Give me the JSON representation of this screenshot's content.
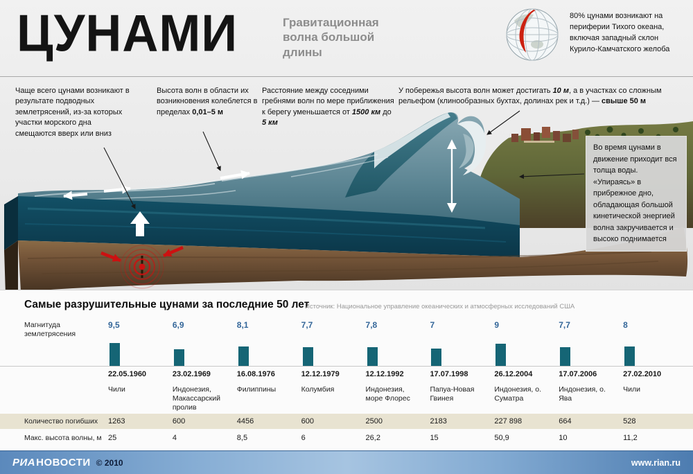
{
  "header": {
    "title": "ЦУНАМИ",
    "subtitle": "Гравитационная волна большой длины",
    "globe_note": "80% цунами возникают на периферии Тихого океана, включая западный склон Курило-Камчатского желоба"
  },
  "annotations": {
    "cause": "Чаще всего цунами возникают в результате подводных землетрясений, из-за которых участки морского дна смещаются вверх или вниз",
    "height_pre": "Высота волн в области их возникновения колеблется в пределах ",
    "height_bold": "0,01–5 м",
    "distance_pre": "Расстояние между соседними гребнями волн по мере приближения к берегу уменьшается от ",
    "distance_val1": "1500 км",
    "distance_mid": " до ",
    "distance_val2": "5 км",
    "coast_pre": "У побережья высота волн может достигать ",
    "coast_val1": "10 м",
    "coast_mid": ", а в участках со сложным рельефом (клинообразных бухтах, долинах рек и т.д.) — ",
    "coast_val2": "свыше 50 м",
    "column_note": "Во время цунами в движение приходит вся толща воды. «Упираясь» в прибрежное дно, обладающая большой кинетической энергией волна закручивается и высоко поднимается"
  },
  "chart": {
    "title": "Самые разрушительные цунами за последние 50 лет",
    "source": "Источник: Национальное управление океанических и атмосферных исследований США",
    "row_labels": {
      "magnitude": "Магнитуда землетрясения",
      "deaths": "Количество погибших",
      "wave_height": "Макс. высота волны, м"
    }
  },
  "chart_data": {
    "type": "bar",
    "title": "Самые разрушительные цунами за последние 50 лет",
    "categories": [
      "22.05.1960",
      "23.02.1969",
      "16.08.1976",
      "12.12.1979",
      "12.12.1992",
      "17.07.1998",
      "26.12.2004",
      "17.07.2006",
      "27.02.2010"
    ],
    "locations": [
      "Чили",
      "Индонезия, Макассарский пролив",
      "Филиппины",
      "Колумбия",
      "Индонезия, море Флорес",
      "Папуа-Новая Гвинея",
      "Индонезия, о. Суматра",
      "Индонезия, о. Ява",
      "Чили"
    ],
    "magnitude_display": [
      "9,5",
      "6,9",
      "8,1",
      "7,7",
      "7,8",
      "7",
      "9",
      "7,7",
      "8"
    ],
    "deaths_display": [
      "1263",
      "600",
      "4456",
      "600",
      "2500",
      "2183",
      "227 898",
      "664",
      "528"
    ],
    "height_display": [
      "25",
      "4",
      "8,5",
      "6",
      "26,2",
      "15",
      "50,9",
      "10",
      "11,2"
    ],
    "series": [
      {
        "name": "Магнитуда землетрясения",
        "values": [
          9.5,
          6.9,
          8.1,
          7.7,
          7.8,
          7,
          9,
          7.7,
          8
        ]
      },
      {
        "name": "Количество погибших",
        "values": [
          1263,
          600,
          4456,
          600,
          2500,
          2183,
          227898,
          664,
          528
        ]
      },
      {
        "name": "Макс. высота волны, м",
        "values": [
          25,
          4,
          8.5,
          6,
          26.2,
          15,
          50.9,
          10,
          11.2
        ]
      }
    ],
    "ylim": [
      0,
      10
    ],
    "legend": "none",
    "grid": false,
    "bar_color": "#156575",
    "value_color": "#336699"
  },
  "footer": {
    "brand_1": "РИА",
    "brand_2": "НОВОСТИ",
    "copyright": "© 2010",
    "url": "www.rian.ru"
  },
  "colors": {
    "accent_red": "#cc1111",
    "bar_teal": "#156575",
    "beige_row": "#e8e3d1",
    "footer_blue": "#5b89bc"
  }
}
